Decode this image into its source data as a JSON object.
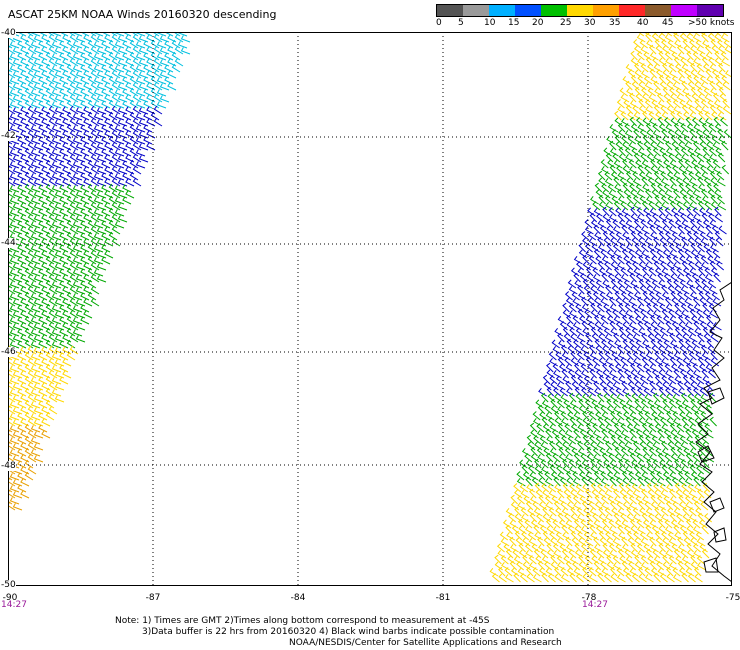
{
  "title": "ASCAT 25KM NOAA Winds 20160320 descending",
  "scale": {
    "labels": [
      "0",
      "5",
      "10",
      "15",
      "20",
      "25",
      "30",
      "35",
      "40",
      "45",
      ">50 knots"
    ],
    "colors": [
      "#555555",
      "#9a9a9a",
      "#00b0ff",
      "#0050ff",
      "#00c000",
      "#ffd800",
      "#ffa000",
      "#ff2828",
      "#8b5a2b",
      "#c000ff",
      "#6000b0"
    ]
  },
  "axes": {
    "lon_labels": [
      "-90",
      "-87",
      "-84",
      "-81",
      "-78",
      "-75"
    ],
    "lat_labels": [
      "-40",
      "-42",
      "-44",
      "-46",
      "-48",
      "-50"
    ],
    "time_labels": [
      "14:27",
      "14:27"
    ]
  },
  "notes": {
    "line1": "Note: 1) Times are GMT 2)Times along bottom correspond to measurement at -45S",
    "line2": "3)Data buffer is 22 hrs from 20160320 4) Black wind barbs indicate possible contamination"
  },
  "credit": "NOAA/NESDIS/Center for Satellite Applications and Research",
  "colors": {
    "grid": "#000000",
    "coast": "#000000",
    "time_label": "#9a1a9a"
  },
  "swaths": [
    {
      "name": "west-swath",
      "color_bands": [
        "#00c0e0",
        "#0000c8",
        "#00a800",
        "#00a800",
        "#ffd800",
        "#e8a000"
      ]
    },
    {
      "name": "east-swath",
      "color_bands": [
        "#ffd800",
        "#00a800",
        "#0000c8",
        "#0000c8",
        "#00a800",
        "#ffd800"
      ]
    }
  ]
}
